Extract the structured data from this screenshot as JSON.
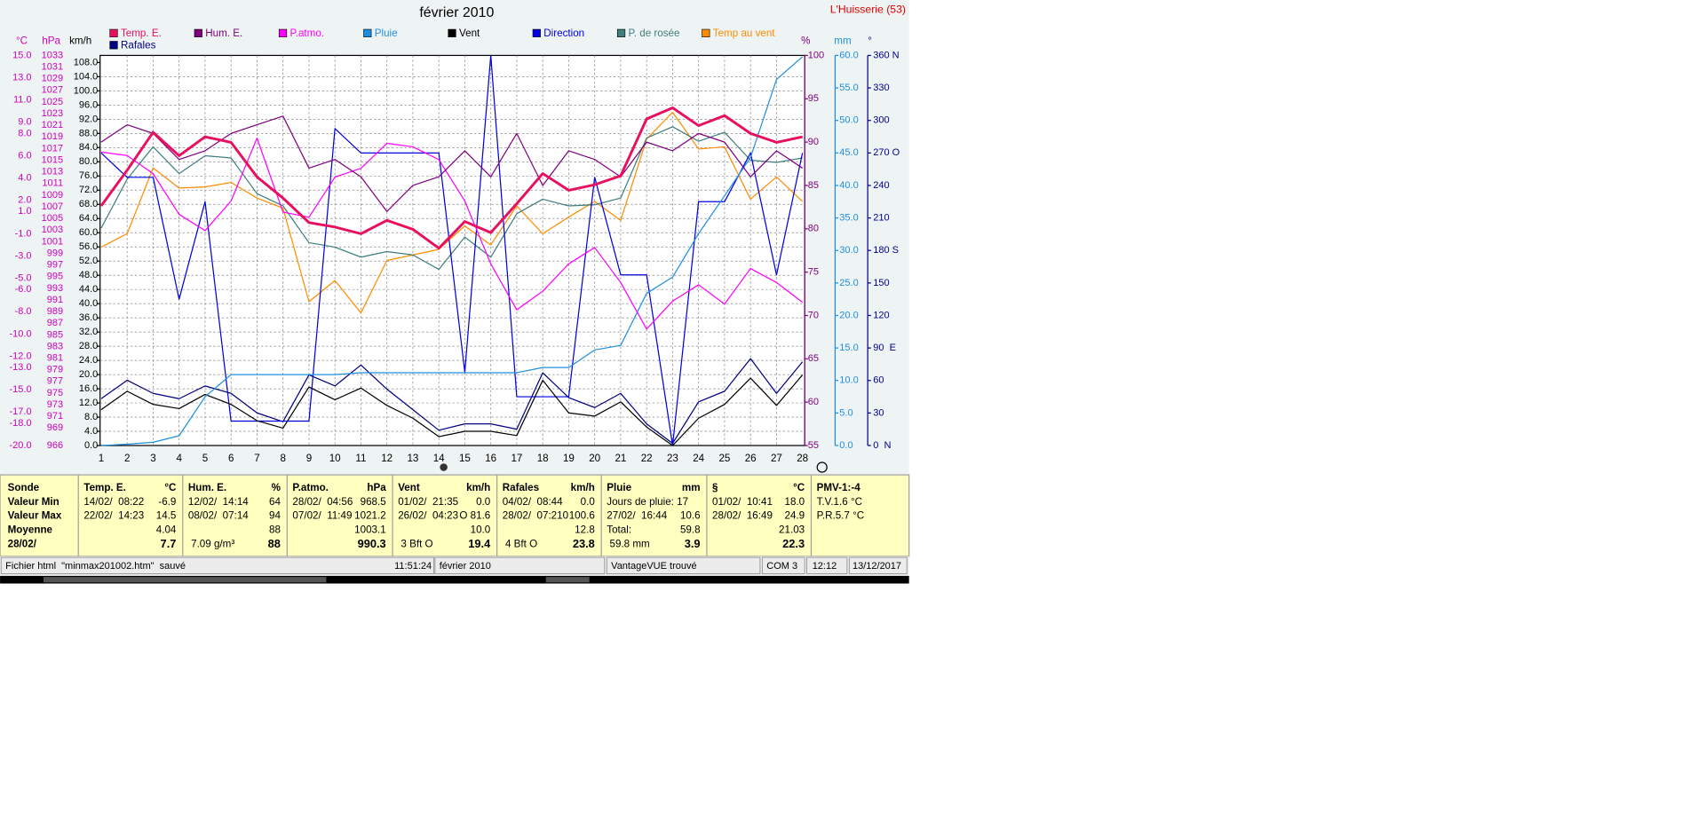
{
  "window": {
    "location": "L'Huisserie (53)"
  },
  "chart_data": {
    "type": "line",
    "title": "février 2010",
    "x": [
      1,
      2,
      3,
      4,
      5,
      6,
      7,
      8,
      9,
      10,
      11,
      12,
      13,
      14,
      15,
      16,
      17,
      18,
      19,
      20,
      21,
      22,
      23,
      24,
      25,
      26,
      27,
      28
    ],
    "xlim": [
      1,
      28
    ],
    "xticks": [
      1,
      2,
      3,
      4,
      5,
      6,
      7,
      8,
      9,
      10,
      11,
      12,
      13,
      14,
      15,
      16,
      17,
      18,
      19,
      20,
      21,
      22,
      23,
      24,
      25,
      26,
      27,
      28
    ],
    "xgrid": true,
    "y_axes": [
      {
        "unit": "°C",
        "side": "left",
        "color": "#d000c0",
        "ylim": [
          -20,
          15
        ],
        "yticks": [
          {
            "value": 15,
            "label": "15.0"
          },
          {
            "value": 13,
            "label": "13.0"
          },
          {
            "value": 11,
            "label": "11.0"
          },
          {
            "value": 9,
            "label": "9.0"
          },
          {
            "value": 8,
            "label": "8.0"
          },
          {
            "value": 6,
            "label": "6.0"
          },
          {
            "value": 4,
            "label": "4.0"
          },
          {
            "value": 2,
            "label": "2.0"
          },
          {
            "value": 1,
            "label": "1.0"
          },
          {
            "value": -1,
            "label": "-1.0"
          },
          {
            "value": -3,
            "label": "-3.0"
          },
          {
            "value": -5,
            "label": "-5.0"
          },
          {
            "value": -6,
            "label": "-6.0"
          },
          {
            "value": -8,
            "label": "-8.0"
          },
          {
            "value": -10,
            "label": "-10.0"
          },
          {
            "value": -12,
            "label": "-12.0"
          },
          {
            "value": -13,
            "label": "-13.0"
          },
          {
            "value": -15,
            "label": "-15.0"
          },
          {
            "value": -17,
            "label": "-17.0"
          },
          {
            "value": -18,
            "label": "-18.0"
          },
          {
            "value": -20,
            "label": "-20.0"
          }
        ]
      },
      {
        "unit": "hPa",
        "side": "left",
        "color": "#d000c0",
        "ylim": [
          966,
          1033
        ],
        "yticks": [
          1033,
          1031,
          1029,
          1027,
          1025,
          1023,
          1021,
          1019,
          1017,
          1015,
          1013,
          1011,
          1009,
          1007,
          1005,
          1003,
          1001,
          999,
          997,
          995,
          993,
          991,
          989,
          987,
          985,
          983,
          981,
          979,
          977,
          975,
          973,
          971,
          969,
          966
        ]
      },
      {
        "unit": "km/h",
        "side": "left",
        "color": "#000000",
        "ylim": [
          0,
          110
        ],
        "grid": true,
        "yticks": [
          {
            "value": 108,
            "label": "108.0"
          },
          {
            "value": 104,
            "label": "104.0"
          },
          {
            "value": 100,
            "label": "100.0"
          },
          {
            "value": 96,
            "label": "96.0"
          },
          {
            "value": 92,
            "label": "92.0"
          },
          {
            "value": 88,
            "label": "88.0"
          },
          {
            "value": 84,
            "label": "84.0"
          },
          {
            "value": 80,
            "label": "80.0"
          },
          {
            "value": 76,
            "label": "76.0"
          },
          {
            "value": 72,
            "label": "72.0"
          },
          {
            "value": 68,
            "label": "68.0"
          },
          {
            "value": 64,
            "label": "64.0"
          },
          {
            "value": 60,
            "label": "60.0"
          },
          {
            "value": 56,
            "label": "56.0"
          },
          {
            "value": 52,
            "label": "52.0"
          },
          {
            "value": 48,
            "label": "48.0"
          },
          {
            "value": 44,
            "label": "44.0"
          },
          {
            "value": 40,
            "label": "40.0"
          },
          {
            "value": 36,
            "label": "36.0"
          },
          {
            "value": 32,
            "label": "32.0"
          },
          {
            "value": 28,
            "label": "28.0"
          },
          {
            "value": 24,
            "label": "24.0"
          },
          {
            "value": 20,
            "label": "20.0"
          },
          {
            "value": 16,
            "label": "16.0"
          },
          {
            "value": 12,
            "label": "12.0"
          },
          {
            "value": 8,
            "label": "8.0"
          },
          {
            "value": 4,
            "label": "4.0"
          },
          {
            "value": 0,
            "label": "0.0"
          }
        ]
      },
      {
        "unit": "%",
        "side": "right",
        "color": "#800080",
        "ylim": [
          55,
          100
        ],
        "yticks": [
          100,
          95,
          90,
          85,
          80,
          75,
          70,
          65,
          60,
          55
        ]
      },
      {
        "unit": "mm",
        "side": "right",
        "color": "#1e8fe0",
        "ylim": [
          0,
          60
        ],
        "yticks": [
          {
            "value": 60,
            "label": "60.0"
          },
          {
            "value": 55,
            "label": "55.0"
          },
          {
            "value": 50,
            "label": "50.0"
          },
          {
            "value": 45,
            "label": "45.0"
          },
          {
            "value": 40,
            "label": "40.0"
          },
          {
            "value": 35,
            "label": "35.0"
          },
          {
            "value": 30,
            "label": "30.0"
          },
          {
            "value": 25,
            "label": "25.0"
          },
          {
            "value": 20,
            "label": "20.0"
          },
          {
            "value": 15,
            "label": "15.0"
          },
          {
            "value": 10,
            "label": "10.0"
          },
          {
            "value": 5,
            "label": "5.0"
          },
          {
            "value": 0,
            "label": "0.0"
          }
        ]
      },
      {
        "unit": "°",
        "side": "right",
        "color": "#000090",
        "ylim": [
          0,
          360
        ],
        "yticks": [
          {
            "value": 360,
            "label": "360 N"
          },
          330,
          300,
          {
            "value": 270,
            "label": "270 O"
          },
          240,
          210,
          {
            "value": 180,
            "label": "180 S"
          },
          150,
          120,
          {
            "value": 90,
            "label": "90  E"
          },
          60,
          30,
          {
            "value": 0,
            "label": "0  N"
          }
        ]
      }
    ],
    "series": [
      {
        "name": "Temp. E.",
        "color": "#e8105e",
        "axis": 0,
        "values": [
          1.5,
          4.7,
          8.1,
          6.0,
          7.7,
          7.2,
          4.1,
          2.2,
          0.0,
          -0.4,
          -1.0,
          0.2,
          -0.6,
          -2.3,
          0.1,
          -0.9,
          1.7,
          4.4,
          2.9,
          3.4,
          4.2,
          9.3,
          10.3,
          8.7,
          9.6,
          8.0,
          7.2,
          7.7
        ]
      },
      {
        "name": "Hum. E.",
        "color": "#800080",
        "axis": 3,
        "values": [
          90,
          92,
          91,
          88,
          89,
          91,
          92,
          93,
          87,
          88,
          86,
          82,
          85,
          86,
          89,
          86,
          91,
          85,
          89,
          88,
          86,
          90,
          89,
          91,
          90,
          86,
          89,
          87
        ]
      },
      {
        "name": "P.atmo.",
        "color": "#ff00ff",
        "axis": 1,
        "values": [
          1016.4,
          1015.8,
          1012.7,
          1005.7,
          1002.9,
          1008.0,
          1018.8,
          1006.1,
          1005.2,
          1012.1,
          1013.6,
          1017.9,
          1017.3,
          1015.1,
          1008.0,
          997.2,
          989.3,
          992.5,
          997.2,
          1000.0,
          994.0,
          986.0,
          990.8,
          993.6,
          990.3,
          996.4,
          994.0,
          990.6
        ]
      },
      {
        "name": "Pluie",
        "color": "#1e8fe0",
        "axis": 4,
        "values": [
          0.0,
          0.2,
          0.5,
          1.5,
          7.5,
          10.9,
          10.9,
          10.9,
          10.9,
          10.9,
          11.2,
          11.2,
          11.2,
          11.2,
          11.2,
          11.2,
          11.2,
          12.0,
          12.0,
          14.7,
          15.4,
          23.4,
          25.9,
          32.6,
          38.4,
          44.3,
          56.3,
          59.8
        ]
      },
      {
        "name": "Vent",
        "color": "#000000",
        "axis": 2,
        "values": [
          10.1,
          15.3,
          11.6,
          10.4,
          14.4,
          11.6,
          7.0,
          4.9,
          16.5,
          12.9,
          16.2,
          11.3,
          7.7,
          2.5,
          4.0,
          4.0,
          2.8,
          18.4,
          9.2,
          8.3,
          12.3,
          5.2,
          0.0,
          7.7,
          11.6,
          19.0,
          11.3,
          19.9
        ]
      },
      {
        "name": "Direction",
        "color": "#0000e0",
        "axis": 5,
        "values": [
          270,
          247.5,
          247.5,
          135,
          225,
          22.5,
          22.5,
          22.5,
          22.5,
          292.5,
          270,
          270,
          270,
          270,
          67.5,
          360,
          45,
          45,
          45,
          247.5,
          157.5,
          157.5,
          0,
          225,
          225,
          270,
          157.5,
          270
        ]
      },
      {
        "name": "P. de rosée",
        "color": "#3f7f7f",
        "axis": 0,
        "values": [
          -0.5,
          3.9,
          6.8,
          4.4,
          6.0,
          5.8,
          2.6,
          1.5,
          -1.8,
          -2.2,
          -3.1,
          -2.6,
          -2.9,
          -4.2,
          -1.3,
          -3.1,
          0.8,
          2.1,
          1.5,
          1.6,
          2.2,
          7.6,
          8.6,
          7.3,
          8.1,
          5.6,
          5.4,
          5.8
        ]
      },
      {
        "name": "Temp au vent",
        "color": "#ff8c00",
        "axis": 0,
        "values": [
          -2.2,
          -1.0,
          4.9,
          3.1,
          3.2,
          3.6,
          2.2,
          1.3,
          -7.1,
          -5.2,
          -8.1,
          -3.4,
          -2.9,
          -2.4,
          -0.3,
          -2.0,
          1.5,
          -1.0,
          0.5,
          1.9,
          0.2,
          7.5,
          9.9,
          6.6,
          6.8,
          2.1,
          4.1,
          1.9
        ]
      },
      {
        "name": "Rafales",
        "color": "#000080",
        "axis": 2,
        "values": [
          13.2,
          18.4,
          14.7,
          13.2,
          16.8,
          14.7,
          9.2,
          6.7,
          19.9,
          16.8,
          22.7,
          15.9,
          10.1,
          4.3,
          6.1,
          6.1,
          4.6,
          20.5,
          13.5,
          10.7,
          14.7,
          6.1,
          0.6,
          12.3,
          15.3,
          24.5,
          14.7,
          23.6
        ]
      }
    ]
  },
  "table": {
    "columns": [
      {
        "header": "Sonde",
        "lines": [
          {
            "left": "Valeur Min"
          },
          {
            "left": "Valeur Max"
          },
          {
            "left": "Moyenne"
          },
          {
            "left": "28/02/"
          }
        ]
      },
      {
        "header": "Temp. E.",
        "unit": "°C",
        "lines": [
          {
            "left": "14/02/  08:22",
            "right": "-6.9"
          },
          {
            "left": "22/02/  14:23",
            "right": "14.5"
          },
          {
            "right": "4.04"
          },
          {
            "right": "7.7"
          }
        ]
      },
      {
        "header": "Hum. E.",
        "unit": "%",
        "lines": [
          {
            "left": "12/02/  14:14",
            "right": "64"
          },
          {
            "left": "08/02/  07:14",
            "right": "94"
          },
          {
            "right": "88"
          },
          {
            "left": " 7.09 g/m³",
            "right": "88"
          }
        ]
      },
      {
        "header": "P.atmo.",
        "unit": "hPa",
        "lines": [
          {
            "left": "28/02/  04:56",
            "right": "968.5"
          },
          {
            "left": "07/02/  11:49",
            "right": "1021.2"
          },
          {
            "right": "1003.1"
          },
          {
            "right": "990.3"
          }
        ]
      },
      {
        "header": "Vent",
        "unit": "km/h",
        "lines": [
          {
            "left": "01/02/  21:35",
            "right": "0.0"
          },
          {
            "left": "26/02/  04:23",
            "right": "O 81.6"
          },
          {
            "right": "10.0"
          },
          {
            "left": " 3 Bft O",
            "right": "19.4"
          }
        ]
      },
      {
        "header": "Rafales",
        "unit": "km/h",
        "lines": [
          {
            "left": "04/02/  08:44",
            "right": "0.0"
          },
          {
            "left": "28/02/  07:210",
            "right": "100.6"
          },
          {
            "right": "12.8"
          },
          {
            "left": " 4 Bft O",
            "right": "23.8"
          }
        ]
      },
      {
        "header": "Pluie",
        "unit": "mm",
        "lines": [
          {
            "left": "Jours de pluie: 17"
          },
          {
            "left": "27/02/  16:44",
            "right": "10.6"
          },
          {
            "left": "Total:",
            "right": "59.8"
          },
          {
            "left": " 59.8 mm",
            "right": "3.9"
          }
        ]
      },
      {
        "header": "§",
        "unit": "°C",
        "lines": [
          {
            "left": "01/02/  10:41",
            "right": "18.0"
          },
          {
            "left": "28/02/  16:49",
            "right": "24.9"
          },
          {
            "right": "21.03"
          },
          {
            "right": "22.3"
          }
        ]
      },
      {
        "header": "PMV-1:-4",
        "lines": [
          {
            "left": "T.V.1.6 °C"
          },
          {
            "left": "P.R.5.7 °C"
          }
        ]
      }
    ]
  },
  "status_bar": {
    "fields": [
      "Fichier html  \"minmax201002.htm\"  sauvé",
      "11:51:24",
      "février 2010",
      "VantageVUE trouvé",
      "COM 3",
      "12:12",
      "13/12/2017"
    ]
  }
}
